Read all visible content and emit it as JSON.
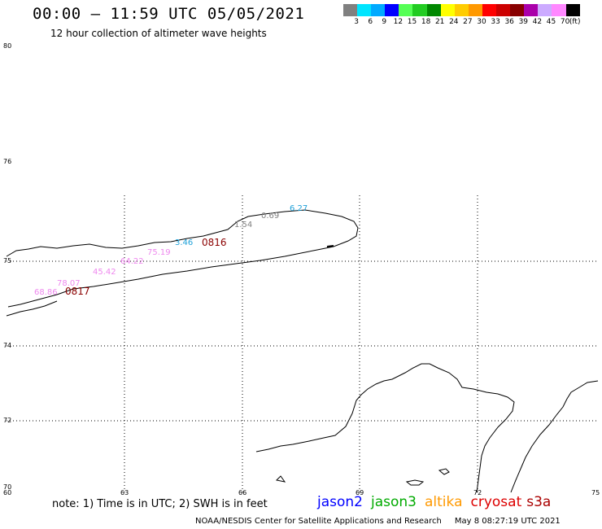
{
  "header": {
    "title": "00:00 – 11:59 UTC 05/05/2021",
    "subtitle": "12 hour collection of altimeter wave heights"
  },
  "colorbar": {
    "colors": [
      "#808080",
      "#00e5ff",
      "#00aaff",
      "#0000ff",
      "#55ff55",
      "#22cc22",
      "#008800",
      "#ffff00",
      "#ffcc00",
      "#ff9900",
      "#ff0000",
      "#cc0000",
      "#880000",
      "#aa00aa",
      "#ccaaff",
      "#ff88ff",
      "#000000"
    ],
    "labels": [
      "3",
      "6",
      "9",
      "12",
      "15",
      "18",
      "21",
      "24",
      "27",
      "30",
      "33",
      "36",
      "39",
      "42",
      "45",
      "70",
      "(ft)"
    ]
  },
  "axes": {
    "lat_labels": [
      "80",
      "76",
      "75",
      "74",
      "72",
      "70"
    ],
    "lon_labels": [
      "60",
      "63",
      "66",
      "69",
      "72",
      "75"
    ]
  },
  "wave_labels": [
    {
      "text": "6.27",
      "color": "#1ea0d8"
    },
    {
      "text": "0.69",
      "color": "#808080"
    },
    {
      "text": "1.54",
      "color": "#808080"
    },
    {
      "text": "3.46",
      "color": "#1ea0d8"
    },
    {
      "text": "75.19",
      "color": "#ee88ee"
    },
    {
      "text": "64.22",
      "color": "#ee88ee"
    },
    {
      "text": "45.42",
      "color": "#ee88ee"
    },
    {
      "text": "78.07",
      "color": "#ee88ee"
    },
    {
      "text": "68.86",
      "color": "#ee88ee"
    }
  ],
  "pass_times": [
    "0816",
    "0817"
  ],
  "note": "note:  1) Time is in UTC;  2) SWH is in feet",
  "satellites": [
    {
      "name": "jason2",
      "color": "#0000ff"
    },
    {
      "name": "jason3",
      "color": "#00aa00"
    },
    {
      "name": "altika",
      "color": "#ff9900"
    },
    {
      "name": "cryosat",
      "color": "#dd0000"
    },
    {
      "name": "s3a",
      "color": "#aa0000"
    }
  ],
  "footer": {
    "credit": "NOAA/NESDIS Center for Satellite Applications and Research",
    "timestamp": "May  8 08:27:19 UTC 2021"
  }
}
